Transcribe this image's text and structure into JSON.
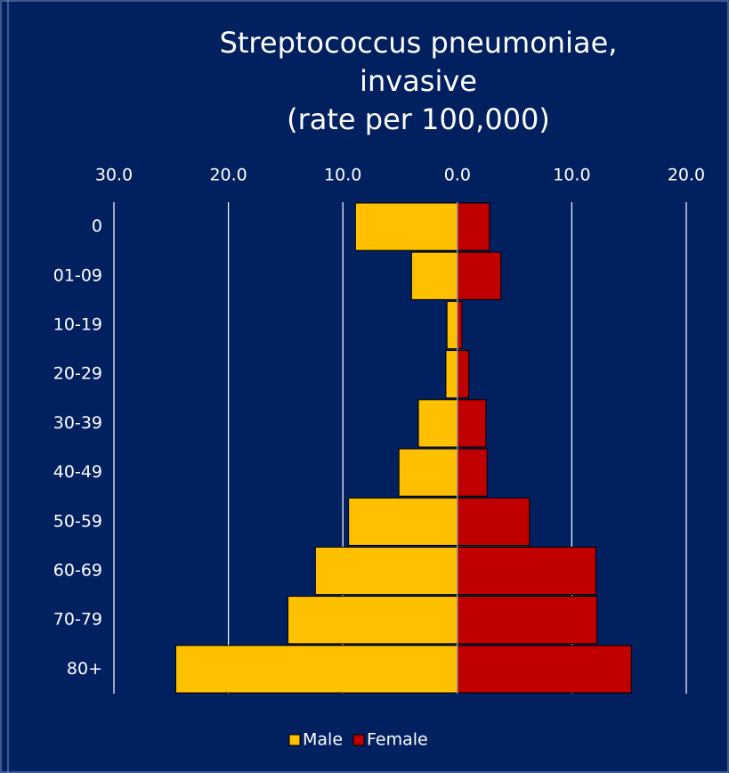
{
  "chart_data": {
    "type": "pyramid",
    "title": [
      "Streptococcus pneumoniae,",
      "invasive",
      "(rate per 100,000)"
    ],
    "categories": [
      "0",
      "01-09",
      "10-19",
      "20-29",
      "30-39",
      "40-49",
      "50-59",
      "60-69",
      "70-79",
      "80+"
    ],
    "series": [
      {
        "name": "Male",
        "color": "#ffc000",
        "values": [
          -8.9,
          -4.0,
          -0.9,
          -1.0,
          -3.4,
          -5.1,
          -9.5,
          -12.4,
          -14.8,
          -24.6
        ]
      },
      {
        "name": "Female",
        "color": "#c00000",
        "values": [
          2.8,
          3.8,
          0.4,
          1.0,
          2.5,
          2.6,
          6.3,
          12.1,
          12.2,
          15.2
        ]
      }
    ],
    "xlim": [
      -30,
      20
    ],
    "xticks": [
      {
        "value": -30,
        "label": "30.0"
      },
      {
        "value": -20,
        "label": "20.0"
      },
      {
        "value": -10,
        "label": "10.0"
      },
      {
        "value": 0,
        "label": "0.0"
      },
      {
        "value": 10,
        "label": "10.0"
      },
      {
        "value": 20,
        "label": "20.0"
      }
    ],
    "grid": true,
    "legend": "bottom"
  }
}
